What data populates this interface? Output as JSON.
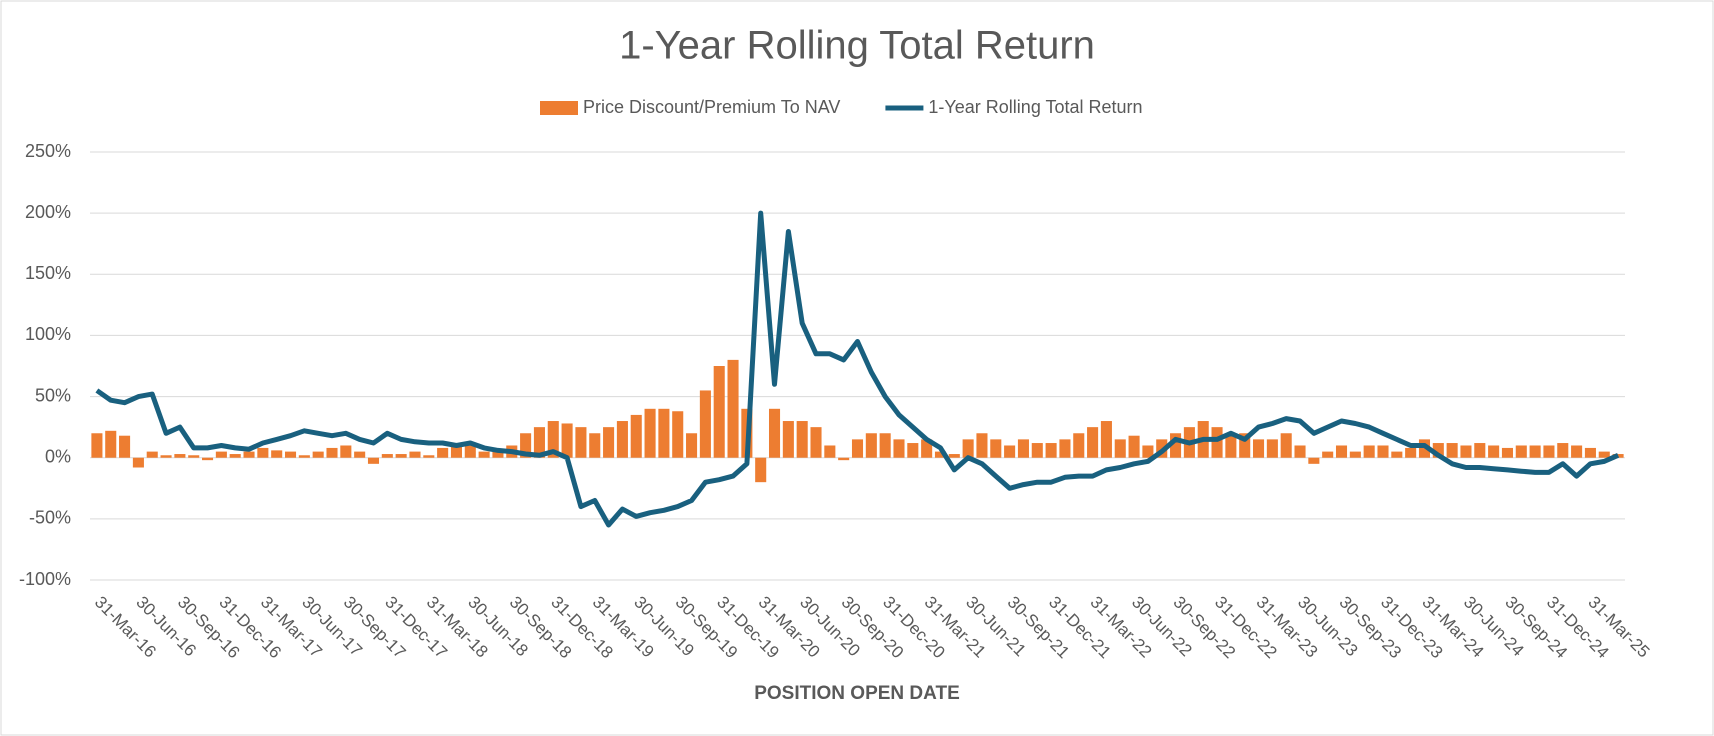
{
  "chart_data": {
    "type": "combo",
    "title": "1-Year Rolling Total Return",
    "x_label": "POSITION OPEN DATE",
    "categories": [
      "31-Mar-16",
      null,
      null,
      "30-Jun-16",
      null,
      null,
      "30-Sep-16",
      null,
      null,
      "31-Dec-16",
      null,
      null,
      "31-Mar-17",
      null,
      null,
      "30-Jun-17",
      null,
      null,
      "30-Sep-17",
      null,
      null,
      "31-Dec-17",
      null,
      null,
      "31-Mar-18",
      null,
      null,
      "30-Jun-18",
      null,
      null,
      "30-Sep-18",
      null,
      null,
      "31-Dec-18",
      null,
      null,
      "31-Mar-19",
      null,
      null,
      "30-Jun-19",
      null,
      null,
      "30-Sep-19",
      null,
      null,
      "31-Dec-19",
      null,
      null,
      "31-Mar-20",
      null,
      null,
      "30-Jun-20",
      null,
      null,
      "30-Sep-20",
      null,
      null,
      "31-Dec-20",
      null,
      null,
      "31-Mar-21",
      null,
      null,
      "30-Jun-21",
      null,
      null,
      "30-Sep-21",
      null,
      null,
      "31-Dec-21",
      null,
      null,
      "31-Mar-22",
      null,
      null,
      "30-Jun-22",
      null,
      null,
      "30-Sep-22",
      null,
      null,
      "31-Dec-22",
      null,
      null,
      "31-Mar-23",
      null,
      null,
      "30-Jun-23",
      null,
      null,
      "30-Sep-23",
      null,
      null,
      "31-Dec-23",
      null,
      null,
      "31-Mar-24",
      null,
      null,
      "30-Jun-24",
      null,
      null,
      "30-Sep-24",
      null,
      null,
      "31-Dec-24",
      null,
      null,
      "31-Mar-25",
      null,
      null
    ],
    "series": [
      {
        "name": "Price Discount/Premium To NAV",
        "type": "bar",
        "color": "#ed7d31",
        "values": [
          20,
          22,
          18,
          -8,
          5,
          2,
          3,
          2,
          -2,
          5,
          3,
          5,
          8,
          6,
          5,
          2,
          5,
          8,
          10,
          5,
          -5,
          3,
          3,
          5,
          2,
          8,
          10,
          10,
          5,
          5,
          10,
          20,
          25,
          30,
          28,
          25,
          20,
          25,
          30,
          35,
          40,
          40,
          38,
          20,
          55,
          75,
          80,
          40,
          -20,
          40,
          30,
          30,
          25,
          10,
          -2,
          15,
          20,
          20,
          15,
          12,
          15,
          5,
          3,
          15,
          20,
          15,
          10,
          15,
          12,
          12,
          15,
          20,
          25,
          30,
          15,
          18,
          10,
          15,
          20,
          25,
          30,
          25,
          20,
          20,
          15,
          15,
          20,
          10,
          -5,
          5,
          10,
          5,
          10,
          10,
          5,
          8,
          15,
          12,
          12,
          10,
          12,
          10,
          8,
          10,
          10,
          10,
          12,
          10,
          8,
          5,
          3
        ]
      },
      {
        "name": "1-Year Rolling Total Return",
        "type": "line",
        "color": "#19607f",
        "values": [
          55,
          47,
          45,
          50,
          52,
          20,
          25,
          8,
          8,
          10,
          8,
          7,
          12,
          15,
          18,
          22,
          20,
          18,
          20,
          15,
          12,
          20,
          15,
          13,
          12,
          12,
          10,
          12,
          8,
          6,
          5,
          3,
          2,
          5,
          0,
          -40,
          -35,
          -55,
          -42,
          -48,
          -45,
          -43,
          -40,
          -35,
          -20,
          -18,
          -15,
          -5,
          200,
          60,
          185,
          110,
          85,
          85,
          80,
          95,
          70,
          50,
          35,
          25,
          15,
          8,
          -10,
          0,
          -5,
          -15,
          -25,
          -22,
          -20,
          -20,
          -16,
          -15,
          -15,
          -10,
          -8,
          -5,
          -3,
          5,
          15,
          12,
          15,
          15,
          20,
          15,
          25,
          28,
          32,
          30,
          20,
          25,
          30,
          28,
          25,
          20,
          15,
          10,
          10,
          2,
          -5,
          -8,
          -8,
          -9,
          -10,
          -11,
          -12,
          -12,
          -5,
          -15,
          -5,
          -3,
          2
        ]
      }
    ],
    "ylim": [
      -100,
      250
    ],
    "yticks": [
      {
        "value": -100,
        "label": "-100%"
      },
      {
        "value": -50,
        "label": "-50%"
      },
      {
        "value": 0,
        "label": "0%"
      },
      {
        "value": 50,
        "label": "50%"
      },
      {
        "value": 100,
        "label": "100%"
      },
      {
        "value": 150,
        "label": "150%"
      },
      {
        "value": 200,
        "label": "200%"
      },
      {
        "value": 250,
        "label": "250%"
      }
    ],
    "grid": true,
    "legend": "top"
  }
}
